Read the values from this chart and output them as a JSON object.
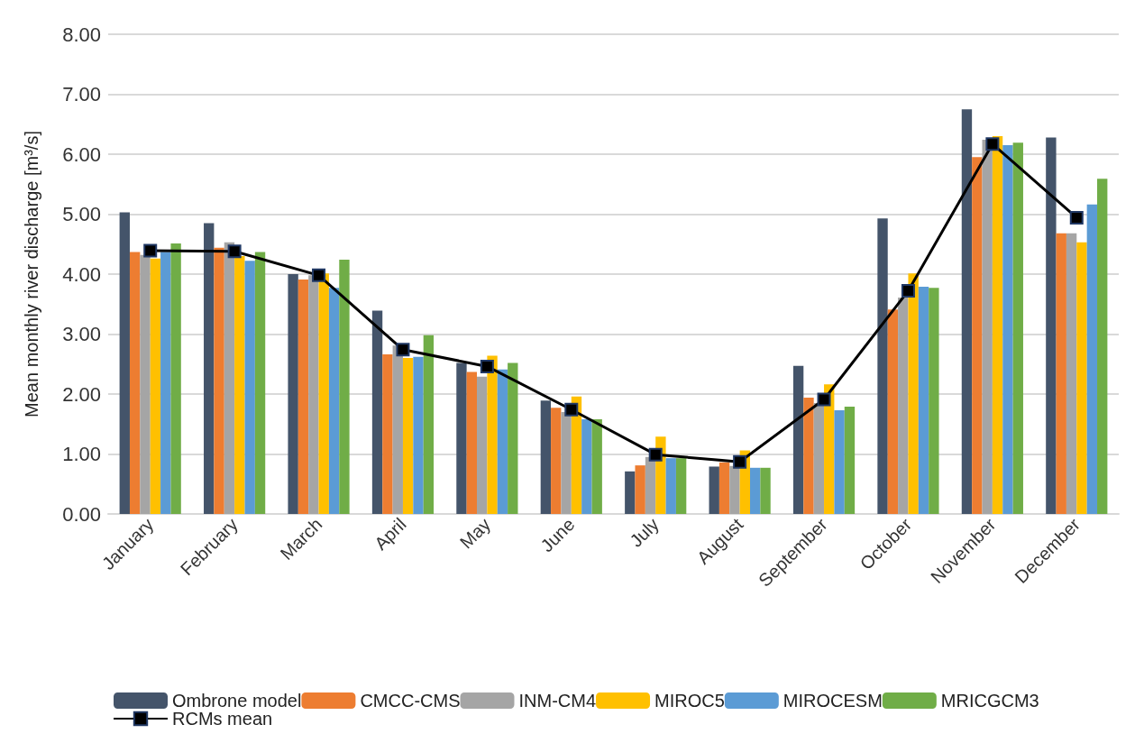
{
  "chart_data": {
    "type": "bar",
    "ylabel": "Mean monthly river discharge [m³/s]",
    "categories": [
      "January",
      "February",
      "March",
      "April",
      "May",
      "June",
      "July",
      "August",
      "September",
      "October",
      "November",
      "December"
    ],
    "series": [
      {
        "name": "Ombrone model",
        "color": "#44546a",
        "values": [
          5.03,
          4.85,
          4.0,
          3.39,
          2.52,
          1.89,
          0.71,
          0.79,
          2.47,
          4.93,
          6.75,
          6.28
        ]
      },
      {
        "name": "CMCC-CMS",
        "color": "#ed7d31",
        "values": [
          4.37,
          4.44,
          3.91,
          2.66,
          2.37,
          1.77,
          0.81,
          0.86,
          1.94,
          3.41,
          5.95,
          4.68
        ]
      },
      {
        "name": "INM-CM4",
        "color": "#a5a5a5",
        "values": [
          4.32,
          4.53,
          3.98,
          2.81,
          2.29,
          1.7,
          0.95,
          0.8,
          1.85,
          3.61,
          6.24,
          4.68
        ]
      },
      {
        "name": "MIROC5",
        "color": "#ffc000",
        "values": [
          4.26,
          4.3,
          4.01,
          2.6,
          2.64,
          1.96,
          1.29,
          1.06,
          2.16,
          4.01,
          6.3,
          4.53
        ]
      },
      {
        "name": "MIROCESM",
        "color": "#5b9bd5",
        "values": [
          4.37,
          4.22,
          3.77,
          2.62,
          2.41,
          1.58,
          0.93,
          0.77,
          1.73,
          3.79,
          6.15,
          5.16
        ]
      },
      {
        "name": "MRICGCM3",
        "color": "#70ad47",
        "values": [
          4.51,
          4.37,
          4.24,
          2.98,
          2.52,
          1.58,
          0.93,
          0.77,
          1.79,
          3.77,
          6.19,
          5.59
        ]
      },
      {
        "name": "RCMs mean",
        "type": "line",
        "marker": "square",
        "color": "#000000",
        "values": [
          4.39,
          4.38,
          3.98,
          2.74,
          2.46,
          1.74,
          0.99,
          0.87,
          1.91,
          3.72,
          6.17,
          4.94
        ]
      }
    ],
    "ylim": [
      0,
      8
    ],
    "yticks": [
      {
        "value": 0,
        "label": "0.00"
      },
      {
        "value": 1,
        "label": "1.00"
      },
      {
        "value": 2,
        "label": "2.00"
      },
      {
        "value": 3,
        "label": "3.00"
      },
      {
        "value": 4,
        "label": "4.00"
      },
      {
        "value": 5,
        "label": "5.00"
      },
      {
        "value": 6,
        "label": "6.00"
      },
      {
        "value": 7,
        "label": "7.00"
      },
      {
        "value": 8,
        "label": "8.00"
      }
    ],
    "grid": "y",
    "legend": "bottom"
  }
}
